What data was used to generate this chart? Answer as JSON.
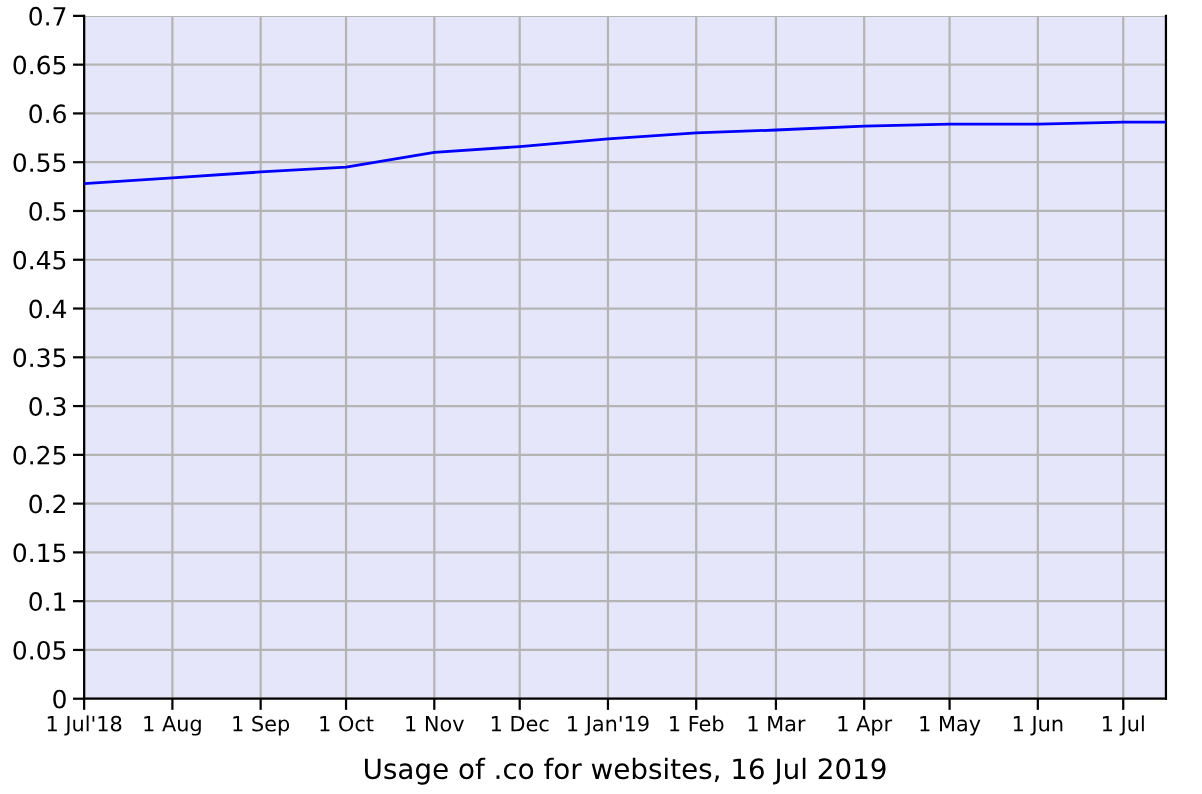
{
  "chart_data": {
    "type": "line",
    "xlabel": "Usage of .co for websites, 16 Jul 2019",
    "x": [
      "2018-07-01",
      "2018-08-01",
      "2018-09-01",
      "2018-10-01",
      "2018-11-01",
      "2018-12-01",
      "2019-01-01",
      "2019-02-01",
      "2019-03-01",
      "2019-04-01",
      "2019-05-01",
      "2019-06-01",
      "2019-07-01",
      "2019-07-16"
    ],
    "series": [
      {
        "color": "#0000ff",
        "values": [
          0.528,
          0.534,
          0.54,
          0.545,
          0.56,
          0.566,
          0.574,
          0.58,
          0.583,
          0.587,
          0.589,
          0.589,
          0.591,
          0.591
        ]
      }
    ],
    "xlim": [
      "2018-07-01",
      "2019-07-16"
    ],
    "xticks": [
      {
        "value": "2018-07-01",
        "label": "1 Jul'18"
      },
      {
        "value": "2018-08-01",
        "label": "1 Aug"
      },
      {
        "value": "2018-09-01",
        "label": "1 Sep"
      },
      {
        "value": "2018-10-01",
        "label": "1 Oct"
      },
      {
        "value": "2018-11-01",
        "label": "1 Nov"
      },
      {
        "value": "2018-12-01",
        "label": "1 Dec"
      },
      {
        "value": "2019-01-01",
        "label": "1 Jan'19"
      },
      {
        "value": "2019-02-01",
        "label": "1 Feb"
      },
      {
        "value": "2019-03-01",
        "label": "1 Mar"
      },
      {
        "value": "2019-04-01",
        "label": "1 Apr"
      },
      {
        "value": "2019-05-01",
        "label": "1 May"
      },
      {
        "value": "2019-06-01",
        "label": "1 Jun"
      },
      {
        "value": "2019-07-01",
        "label": "1 Jul"
      }
    ],
    "ylim": [
      0,
      0.7
    ],
    "yticks": [
      0,
      0.05,
      0.1,
      0.15,
      0.2,
      0.25,
      0.3,
      0.35,
      0.4,
      0.45,
      0.5,
      0.55,
      0.6,
      0.65,
      0.7
    ],
    "grid": true,
    "marker": "none",
    "line_style": "solid"
  }
}
